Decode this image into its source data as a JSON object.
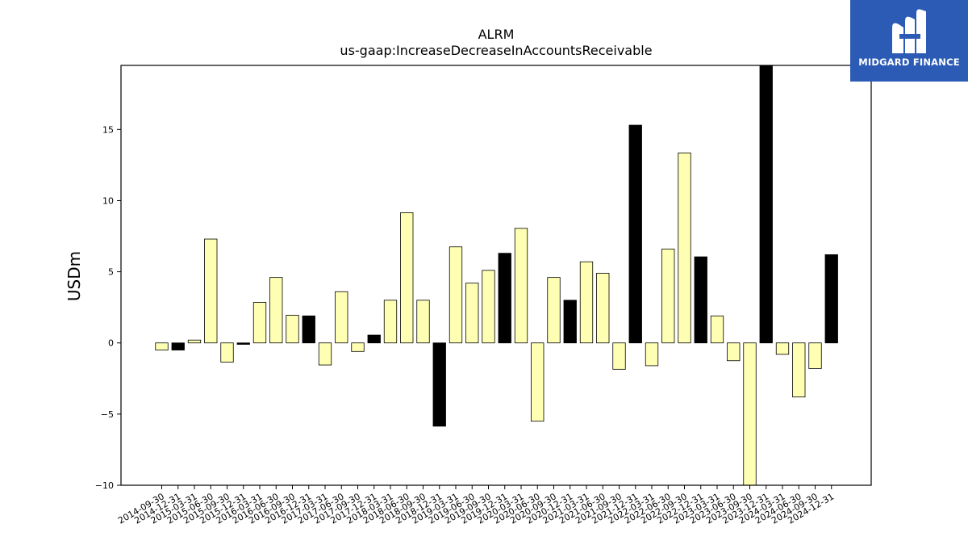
{
  "chart_data": {
    "type": "bar",
    "title": "ALRM",
    "subtitle": "us-gaap:IncreaseDecreaseInAccountsReceivable",
    "xlabel": "",
    "ylabel": "USDm",
    "ylim": [
      -10,
      19.5
    ],
    "yticks": [
      -10,
      -5,
      0,
      5,
      10,
      15
    ],
    "ytick_labels": [
      "−10",
      "−5",
      "0",
      "5",
      "10",
      "15"
    ],
    "grid": false,
    "colors": {
      "quarter": "#ffffb3",
      "annual": "#000000",
      "edge": "#000000"
    },
    "categories": [
      "2014-09-30",
      "2014-12-31",
      "2015-03-31",
      "2015-06-30",
      "2015-09-30",
      "2015-12-31",
      "2016-03-31",
      "2016-06-30",
      "2016-09-30",
      "2016-12-31",
      "2017-03-31",
      "2017-06-30",
      "2017-09-30",
      "2017-12-31",
      "2018-03-31",
      "2018-06-30",
      "2018-09-30",
      "2018-12-31",
      "2019-03-31",
      "2019-06-30",
      "2019-09-30",
      "2019-12-31",
      "2020-03-31",
      "2020-06-30",
      "2020-09-30",
      "2020-12-31",
      "2021-03-31",
      "2021-06-30",
      "2021-09-30",
      "2021-12-31",
      "2022-03-31",
      "2022-06-30",
      "2022-09-30",
      "2022-12-31",
      "2023-03-31",
      "2023-06-30",
      "2023-09-30",
      "2023-12-31",
      "2024-03-31",
      "2024-06-30",
      "2024-09-30",
      "2024-12-31"
    ],
    "values": [
      -0.5,
      -0.5,
      0.2,
      7.3,
      -1.35,
      -0.1,
      2.85,
      4.6,
      1.95,
      1.9,
      -1.55,
      3.6,
      -0.6,
      0.55,
      3.0,
      9.15,
      3.0,
      -5.85,
      6.75,
      4.2,
      5.1,
      6.3,
      8.05,
      -5.5,
      4.6,
      3.0,
      5.7,
      4.9,
      -1.85,
      15.3,
      -1.6,
      6.6,
      13.35,
      6.05,
      1.9,
      -1.25,
      -10.0,
      19.5,
      -0.8,
      -3.8,
      -1.8,
      6.2
    ],
    "is_annual": [
      false,
      true,
      false,
      false,
      false,
      true,
      false,
      false,
      false,
      true,
      false,
      false,
      false,
      true,
      false,
      false,
      false,
      true,
      false,
      false,
      false,
      true,
      false,
      false,
      false,
      true,
      false,
      false,
      false,
      true,
      false,
      false,
      false,
      true,
      false,
      false,
      false,
      true,
      false,
      false,
      false,
      true
    ]
  },
  "logo": {
    "text": "MIDGARD FINANCE",
    "icon": "midgard-logo-icon"
  }
}
